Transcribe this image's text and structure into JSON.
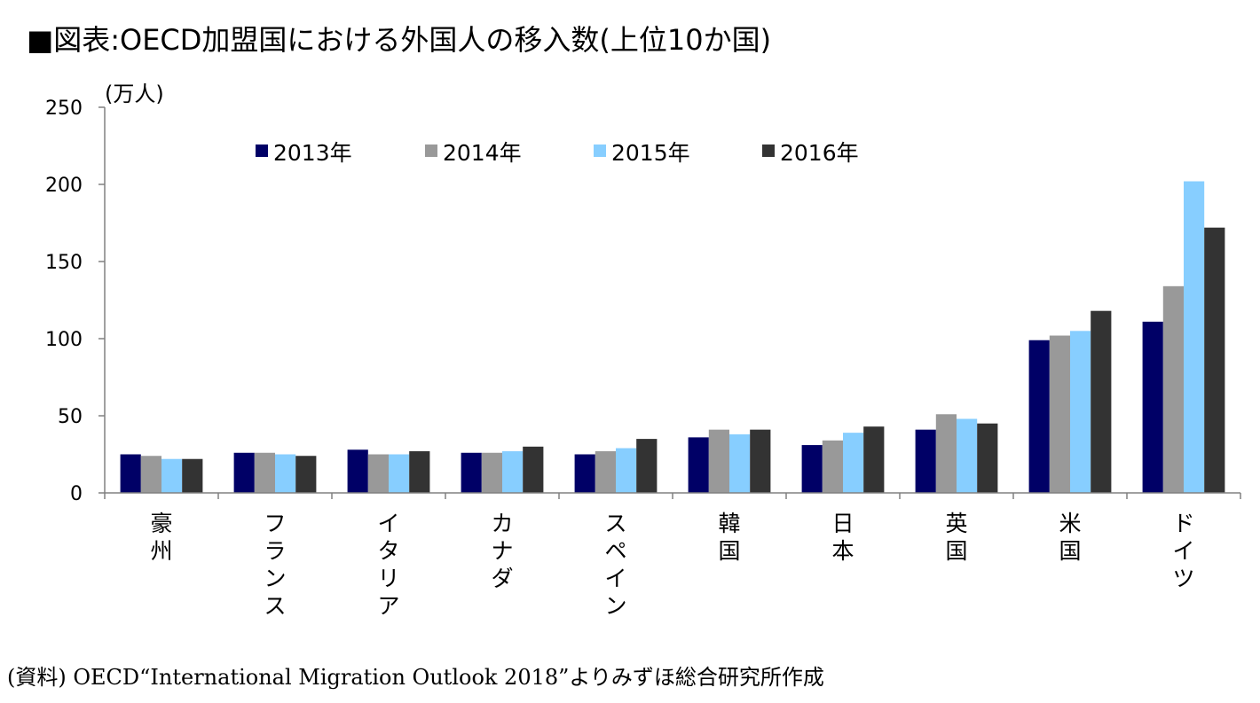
{
  "title": "■図表:OECD加盟国における外国人の移入数(上位10か国)",
  "source": "(資料) OECD“International Migration Outlook 2018”よりみずほ総合研究所作成",
  "colors": {
    "s2013": "#000066",
    "s2014": "#999999",
    "s2015": "#87ceff",
    "s2016": "#333333",
    "axis": "#808080"
  },
  "chart_data": {
    "type": "bar",
    "ylabel": "(万人)",
    "ylim": [
      0,
      250
    ],
    "yticks": [
      0,
      50,
      100,
      150,
      200,
      250
    ],
    "grid": false,
    "legend": "top",
    "categories": [
      "豪州",
      "フランス",
      "イタリア",
      "カナダ",
      "スペイン",
      "韓国",
      "日本",
      "英国",
      "米国",
      "ドイツ"
    ],
    "series": [
      {
        "name": "2013年",
        "values": [
          25,
          26,
          28,
          26,
          25,
          36,
          31,
          41,
          99,
          111
        ]
      },
      {
        "name": "2014年",
        "values": [
          24,
          26,
          25,
          26,
          27,
          41,
          34,
          51,
          102,
          134
        ]
      },
      {
        "name": "2015年",
        "values": [
          22,
          25,
          25,
          27,
          29,
          38,
          39,
          48,
          105,
          202
        ]
      },
      {
        "name": "2016年",
        "values": [
          22,
          24,
          27,
          30,
          35,
          41,
          43,
          45,
          118,
          172
        ]
      }
    ]
  }
}
